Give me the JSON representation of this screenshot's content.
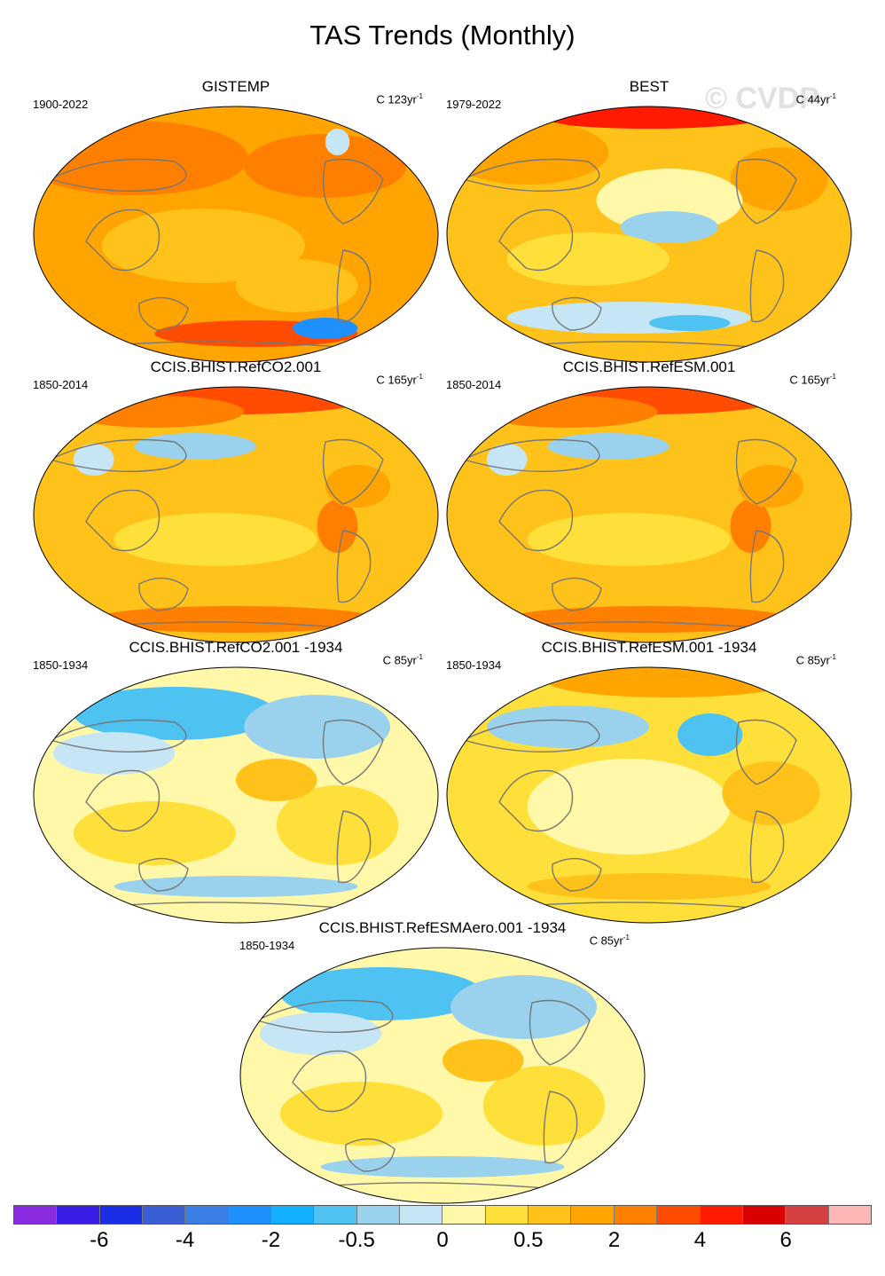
{
  "figure_title": "TAS Trends (Monthly)",
  "watermark": "© CVDP",
  "panels": [
    {
      "title": "GISTEMP",
      "period": "1900-2022",
      "units": "C 123yr",
      "exp": "-1",
      "theme": "warm"
    },
    {
      "title": "BEST",
      "period": "1979-2022",
      "units": "C 44yr",
      "exp": "-1",
      "theme": "mixed"
    },
    {
      "title": "CCIS.BHIST.RefCO2.001",
      "period": "1850-2014",
      "units": "C 165yr",
      "exp": "-1",
      "theme": "hot"
    },
    {
      "title": "CCIS.BHIST.RefESM.001",
      "period": "1850-2014",
      "units": "C 165yr",
      "exp": "-1",
      "theme": "hot"
    },
    {
      "title": "CCIS.BHIST.RefCO2.001 -1934",
      "period": "1850-1934",
      "units": "C 85yr",
      "exp": "-1",
      "theme": "cool"
    },
    {
      "title": "CCIS.BHIST.RefESM.001 -1934",
      "period": "1850-1934",
      "units": "C 85yr",
      "exp": "-1",
      "theme": "mild"
    },
    {
      "title": "CCIS.BHIST.RefESMAero.001 -1934",
      "period": "1850-1934",
      "units": "C 85yr",
      "exp": "-1",
      "theme": "cool"
    }
  ],
  "colorbar": {
    "colors": [
      "#8a2be2",
      "#3a1ee6",
      "#1a2ee6",
      "#3a5ed6",
      "#3a7ee6",
      "#1e90ff",
      "#12b0ff",
      "#4ec2f0",
      "#9ad2ee",
      "#c6e6f6",
      "#fff8a8",
      "#ffe03a",
      "#ffc21a",
      "#ffa400",
      "#ff8000",
      "#ff4c00",
      "#ff1a00",
      "#d80000",
      "#d64040",
      "#ffb6b6"
    ],
    "labels": [
      "-6",
      "-4",
      "-2",
      "-0.5",
      "0",
      "0.5",
      "2",
      "4",
      "6"
    ]
  }
}
